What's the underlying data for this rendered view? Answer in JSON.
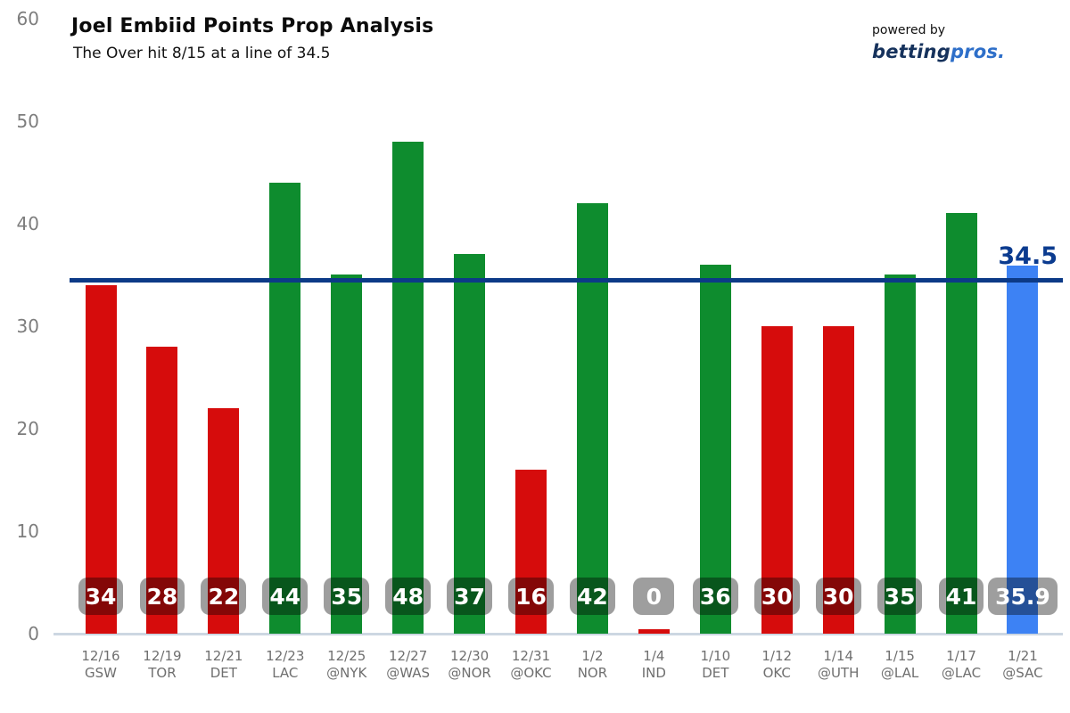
{
  "header": {
    "title": "Joel Embiid Points Prop Analysis",
    "subtitle": "The Over hit 8/15 at a line of 34.5",
    "powered_by": "powered by",
    "brand_first": "betting",
    "brand_second": "pros."
  },
  "chart_data": {
    "type": "bar",
    "title": "Joel Embiid Points Prop Analysis",
    "subtitle": "The Over hit 8/15 at a line of 34.5",
    "ylabel": "",
    "xlabel": "",
    "ylim": [
      0,
      60
    ],
    "yticks": [
      0,
      10,
      20,
      30,
      40,
      50,
      60
    ],
    "grid": false,
    "legend": null,
    "prop_line_value": 34.5,
    "prop_line_label": "34.5",
    "over_record": "8/15",
    "games": [
      {
        "date": "12/16",
        "opponent": "GSW",
        "points": 34,
        "label": "34",
        "result": "under"
      },
      {
        "date": "12/19",
        "opponent": "TOR",
        "points": 28,
        "label": "28",
        "result": "under"
      },
      {
        "date": "12/21",
        "opponent": "DET",
        "points": 22,
        "label": "22",
        "result": "under"
      },
      {
        "date": "12/23",
        "opponent": "LAC",
        "points": 44,
        "label": "44",
        "result": "over"
      },
      {
        "date": "12/25",
        "opponent": "@NYK",
        "points": 35,
        "label": "35",
        "result": "over"
      },
      {
        "date": "12/27",
        "opponent": "@WAS",
        "points": 48,
        "label": "48",
        "result": "over"
      },
      {
        "date": "12/30",
        "opponent": "@NOR",
        "points": 37,
        "label": "37",
        "result": "over"
      },
      {
        "date": "12/31",
        "opponent": "@OKC",
        "points": 16,
        "label": "16",
        "result": "under"
      },
      {
        "date": "1/2",
        "opponent": "NOR",
        "points": 42,
        "label": "42",
        "result": "over"
      },
      {
        "date": "1/4",
        "opponent": "IND",
        "points": 0,
        "label": "0",
        "result": "under"
      },
      {
        "date": "1/10",
        "opponent": "DET",
        "points": 36,
        "label": "36",
        "result": "over"
      },
      {
        "date": "1/12",
        "opponent": "OKC",
        "points": 30,
        "label": "30",
        "result": "under"
      },
      {
        "date": "1/14",
        "opponent": "@UTH",
        "points": 30,
        "label": "30",
        "result": "under"
      },
      {
        "date": "1/15",
        "opponent": "@LAL",
        "points": 35,
        "label": "35",
        "result": "over"
      },
      {
        "date": "1/17",
        "opponent": "@LAC",
        "points": 41,
        "label": "41",
        "result": "over"
      },
      {
        "date": "1/21",
        "opponent": "@SAC",
        "points": 35.9,
        "label": "35.9",
        "result": "projection"
      }
    ],
    "colors": {
      "over": "#0e8c2e",
      "under": "#d60c0c",
      "projection": "#3d82f4",
      "prop_line": "#0c3a87",
      "prop_line_text": "#0b3b8f",
      "axis": "#cdd7e2",
      "tick_text": "#7d7d7d",
      "xlabel_text": "#6f6f6f",
      "badge_overlay": "rgba(0,0,0,0.38)"
    }
  }
}
